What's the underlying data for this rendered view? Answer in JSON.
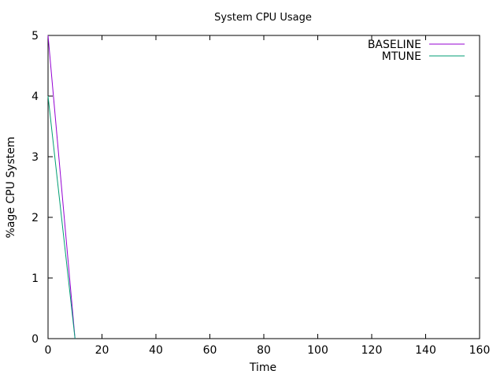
{
  "chart_data": {
    "type": "line",
    "title": "System CPU Usage",
    "xlabel": "Time",
    "ylabel": "%age CPU System",
    "xlim": [
      0,
      160
    ],
    "ylim": [
      0,
      5
    ],
    "xticks": [
      0,
      20,
      40,
      60,
      80,
      100,
      120,
      140,
      160
    ],
    "yticks": [
      0,
      1,
      2,
      3,
      4,
      5
    ],
    "grid": false,
    "legend_position": "top-right",
    "series": [
      {
        "name": "BASELINE",
        "color": "#9400d3",
        "x": [
          0,
          10
        ],
        "y": [
          5,
          0
        ]
      },
      {
        "name": "MTUNE",
        "color": "#009e73",
        "x": [
          0,
          10
        ],
        "y": [
          4,
          0
        ]
      }
    ]
  }
}
